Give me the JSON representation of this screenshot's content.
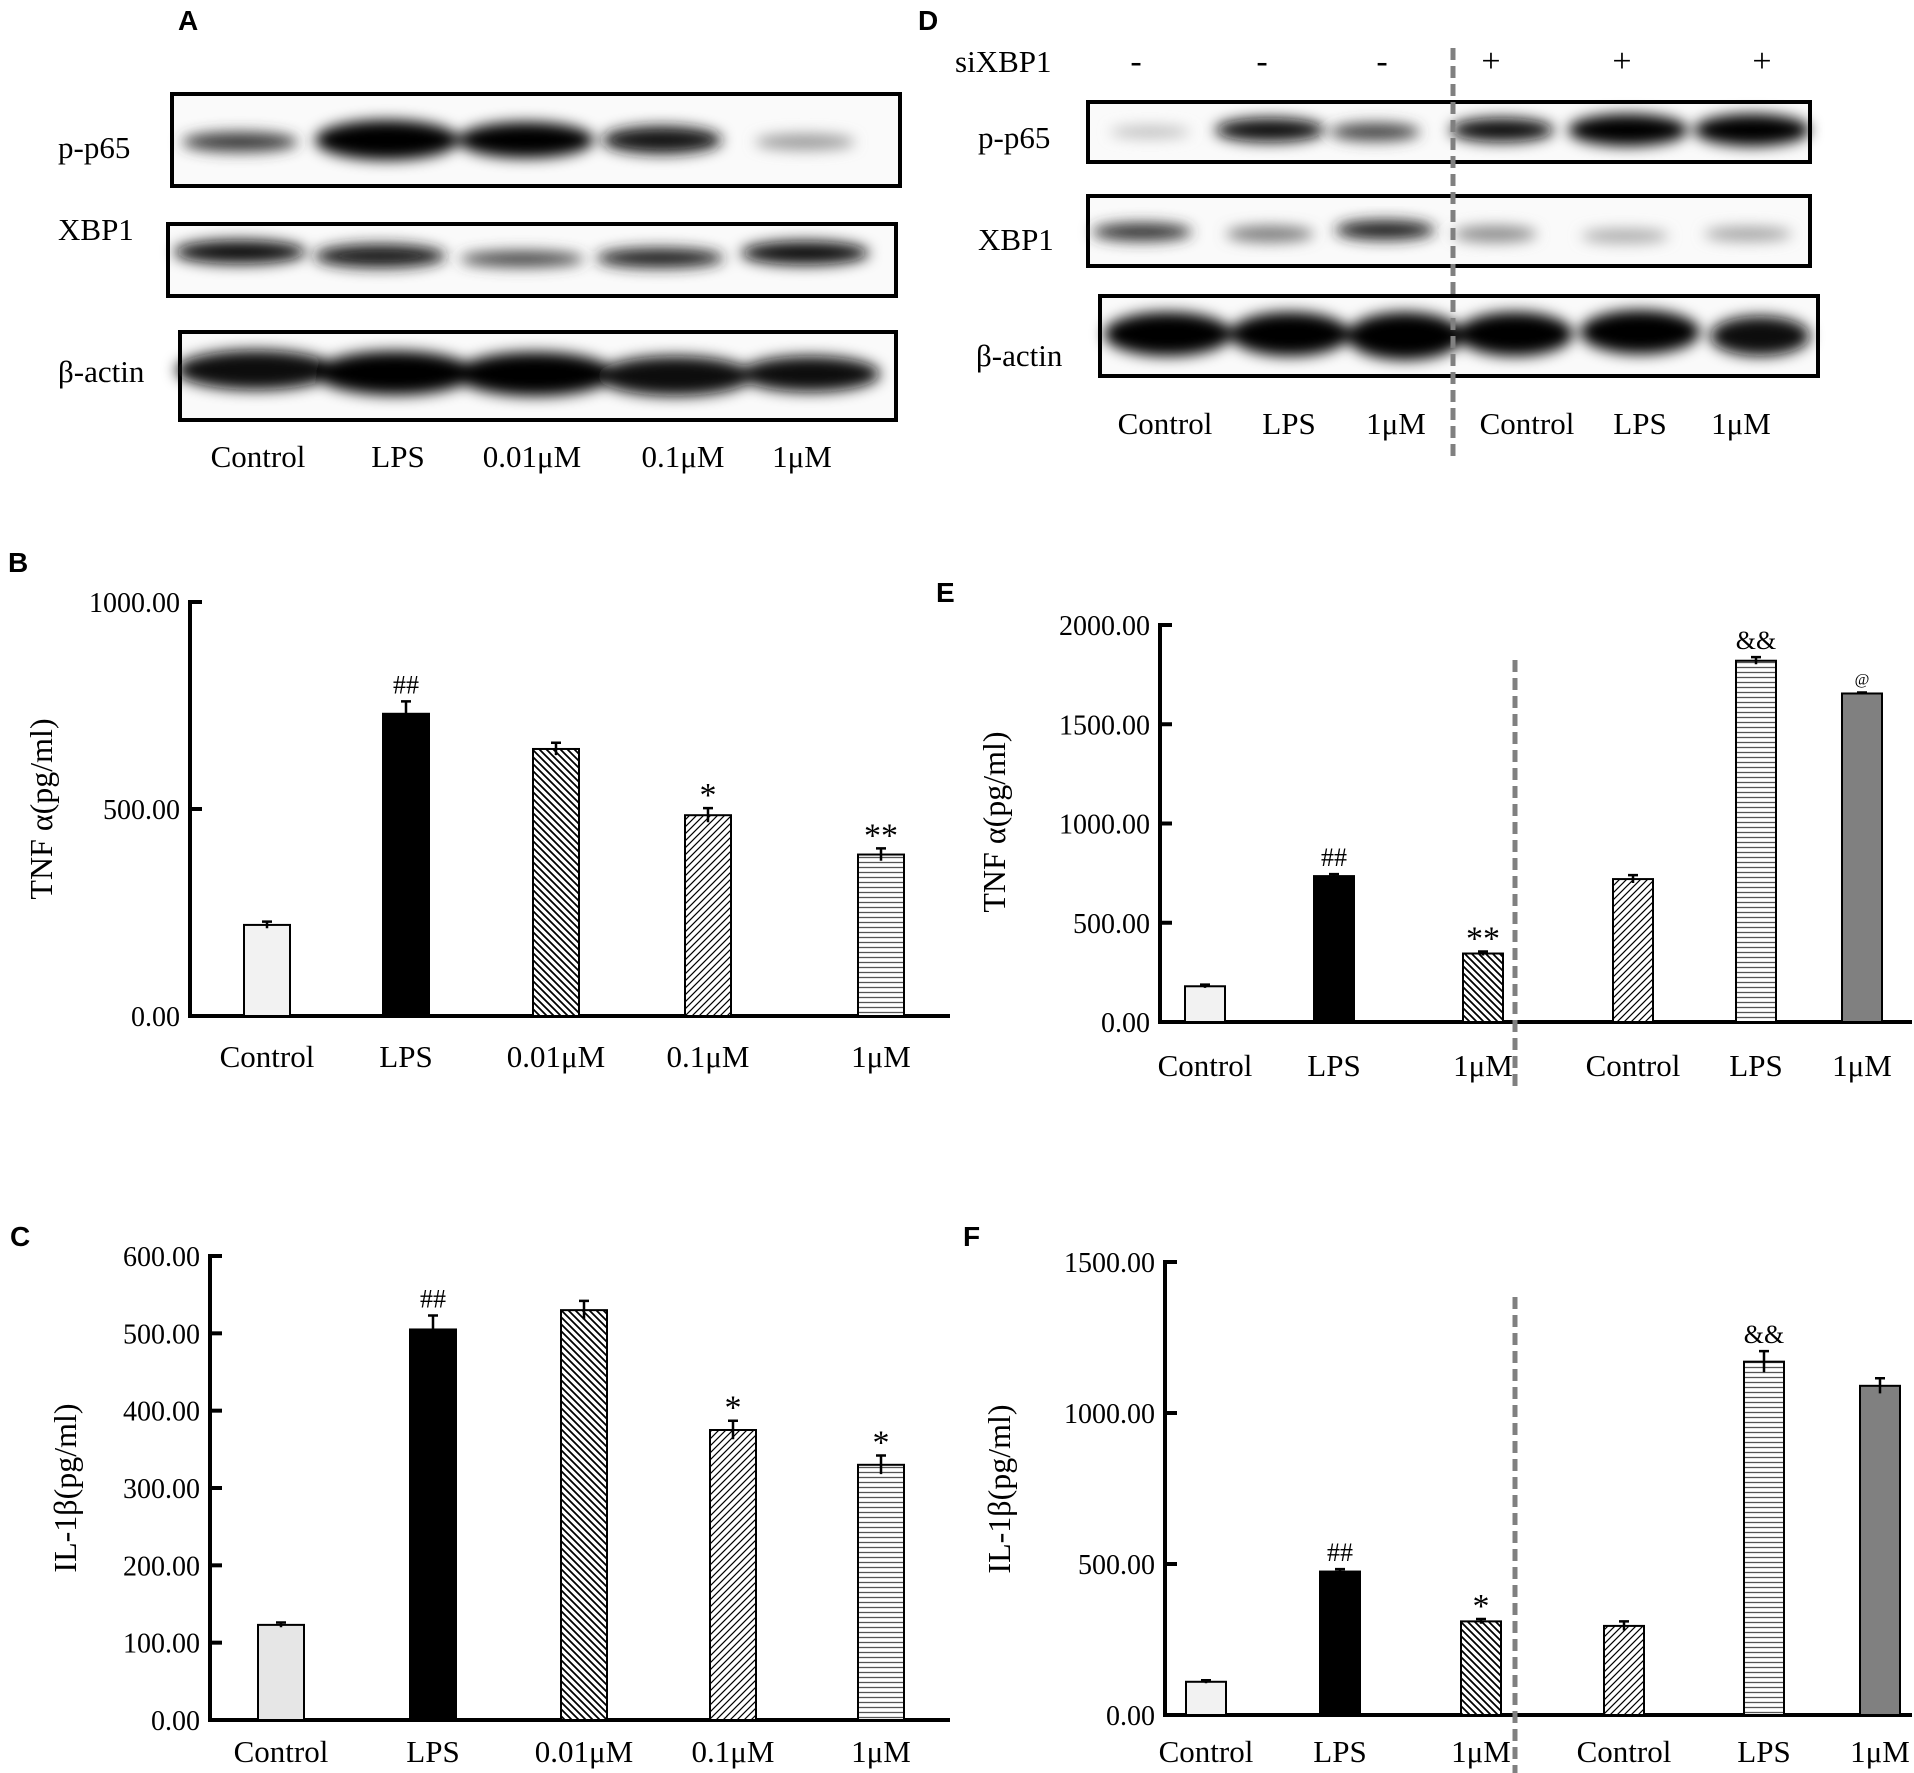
{
  "panels": {
    "A": {
      "letter": "A",
      "row_labels": [
        "p-p65",
        "XBP1",
        "β-actin"
      ],
      "lanes": [
        "Control",
        "LPS",
        "0.01μM",
        "0.1μM",
        "1μM"
      ]
    },
    "D": {
      "letter": "D",
      "treatment_label": "siXBP1",
      "treatment_signs": [
        "-",
        "-",
        "-",
        "+",
        "+",
        "+"
      ],
      "row_labels": [
        "p-p65",
        "XBP1",
        "β-actin"
      ],
      "lanes": [
        "Control",
        "LPS",
        "1μM",
        "Control",
        "LPS",
        "1μM"
      ]
    }
  },
  "chart_data": [
    {
      "id": "B",
      "type": "bar",
      "title": "B",
      "ylabel": "TNF α(pg/ml)",
      "ylim": [
        0,
        1000
      ],
      "yticks": [
        "0.00",
        "500.00",
        "1000.00"
      ],
      "categories": [
        "Control",
        "LPS",
        "0.01μM",
        "0.1μM",
        "1μM"
      ],
      "values": [
        220,
        730,
        645,
        485,
        390
      ],
      "errors": [
        8,
        30,
        15,
        17,
        15
      ],
      "annotations": [
        "",
        "##",
        "",
        "*",
        "**"
      ],
      "fills": [
        "#f2f2f2",
        "#000000",
        "hatch-back",
        "hatch-fwd",
        "hatch-horiz"
      ]
    },
    {
      "id": "C",
      "type": "bar",
      "title": "C",
      "ylabel": "IL-1β(pg/ml)",
      "ylim": [
        0,
        600
      ],
      "yticks": [
        "0.00",
        "100.00",
        "200.00",
        "300.00",
        "400.00",
        "500.00",
        "600.00"
      ],
      "categories": [
        "Control",
        "LPS",
        "0.01μM",
        "0.1μM",
        "1μM"
      ],
      "values": [
        123,
        505,
        530,
        375,
        330
      ],
      "errors": [
        3,
        18,
        12,
        12,
        12
      ],
      "annotations": [
        "",
        "##",
        "",
        "*",
        "*"
      ],
      "fills": [
        "#e6e6e6",
        "#000000",
        "hatch-back",
        "hatch-fwd",
        "hatch-horiz"
      ]
    },
    {
      "id": "E",
      "type": "bar",
      "title": "E",
      "ylabel": "TNF α(pg/ml)",
      "ylim": [
        0,
        2000
      ],
      "yticks": [
        "0.00",
        "500.00",
        "1000.00",
        "1500.00",
        "2000.00"
      ],
      "categories": [
        "Control",
        "LPS",
        "1μM",
        "Control",
        "LPS",
        "1μM"
      ],
      "values": [
        180,
        735,
        345,
        720,
        1820,
        1655
      ],
      "errors": [
        8,
        10,
        10,
        20,
        18,
        5
      ],
      "annotations": [
        "",
        "##",
        "**",
        "",
        "&&",
        "@"
      ],
      "fills": [
        "#f2f2f2",
        "#000000",
        "hatch-back",
        "hatch-fwd",
        "hatch-horiz",
        "#808080"
      ]
    },
    {
      "id": "F",
      "type": "bar",
      "title": "F",
      "ylabel": "IL-1β(pg/ml)",
      "ylim": [
        0,
        1500
      ],
      "yticks": [
        "0.00",
        "500.00",
        "1000.00",
        "1500.00"
      ],
      "categories": [
        "Control",
        "LPS",
        "1μM",
        "Control",
        "LPS",
        "1μM"
      ],
      "values": [
        110,
        475,
        310,
        295,
        1170,
        1090
      ],
      "errors": [
        5,
        8,
        8,
        15,
        35,
        25
      ],
      "annotations": [
        "",
        "##",
        "*",
        "",
        "&&",
        ""
      ],
      "fills": [
        "#f2f2f2",
        "#000000",
        "hatch-back",
        "hatch-fwd",
        "hatch-horiz",
        "#808080"
      ]
    }
  ]
}
